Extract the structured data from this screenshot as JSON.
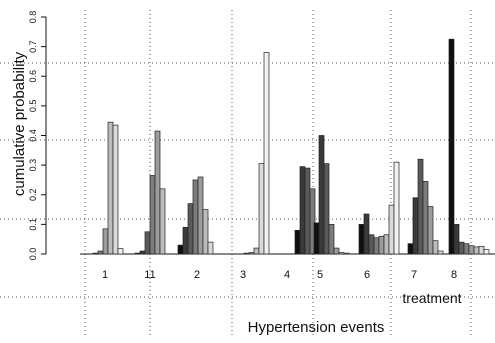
{
  "chart_data": {
    "type": "bar",
    "ylabel": "cumulative probability",
    "xlabel": "Hypertension events",
    "legend_title": "treatment",
    "ylim": [
      0,
      0.8
    ],
    "yticks": [
      "0.0",
      "0.1",
      "0.2",
      "0.3",
      "0.4",
      "0.5",
      "0.6",
      "0.7",
      "0.8"
    ],
    "grid": "dotted",
    "palette": [
      "#101010",
      "#3a3a3a",
      "#5a5a5a",
      "#7c7c7c",
      "#9c9c9c",
      "#bcbcbc",
      "#dadada",
      "#f2f2f2"
    ],
    "groups": [
      {
        "label": "1",
        "values": [
          0.0,
          0.0,
          0.003,
          0.01,
          0.085,
          0.445,
          0.435,
          0.018
        ]
      },
      {
        "label": "11",
        "values": [
          0.003,
          0.01,
          0.075,
          0.265,
          0.415,
          0.22,
          0.0,
          0.0
        ]
      },
      {
        "label": "2",
        "values": [
          0.03,
          0.09,
          0.17,
          0.25,
          0.26,
          0.15,
          0.04,
          0.0
        ]
      },
      {
        "label": "3",
        "values": [
          0.0,
          0.0,
          0.0,
          0.003,
          0.005,
          0.02,
          0.305,
          0.68
        ]
      },
      {
        "label": "4",
        "values": [
          0.08,
          0.295,
          0.29,
          0.22,
          0.095,
          0.02,
          0.003,
          0.0
        ]
      },
      {
        "label": "5",
        "values": [
          0.105,
          0.4,
          0.305,
          0.1,
          0.02,
          0.005,
          0.003,
          0.0
        ]
      },
      {
        "label": "6",
        "values": [
          0.1,
          0.135,
          0.065,
          0.055,
          0.06,
          0.065,
          0.165,
          0.31
        ]
      },
      {
        "label": "7",
        "values": [
          0.035,
          0.19,
          0.32,
          0.245,
          0.16,
          0.045,
          0.01,
          0.0
        ]
      },
      {
        "label": "8",
        "values": [
          0.725,
          0.1,
          0.04,
          0.035,
          0.028,
          0.024,
          0.026,
          0.015
        ]
      }
    ]
  }
}
